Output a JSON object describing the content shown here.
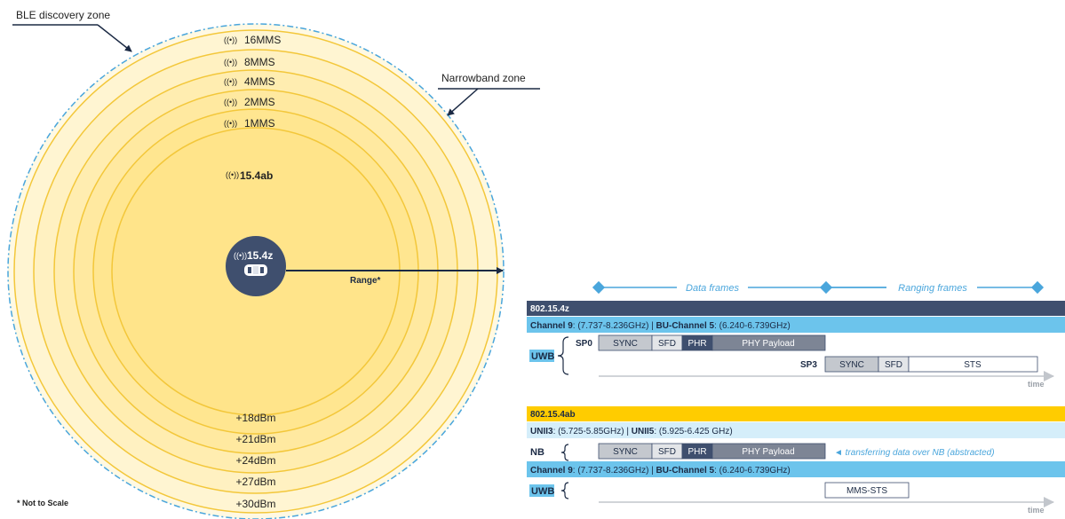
{
  "colors": {
    "navy": "#3f4f6e",
    "sky": "#6cc4ec",
    "sky_light": "#d5eefa",
    "gold": "#ffcc00",
    "ring": "#f3c73a",
    "fill_outer": "#fff7d9",
    "fill_inner": "#ffe58a",
    "grey": "#bfc3ca",
    "grey_dark": "#7d8595",
    "dash": "#4aa6dc"
  },
  "left": {
    "ble_label": "BLE discovery zone",
    "narrowband_label": "Narrowband zone",
    "mms_rings": [
      "16MMS",
      "8MMS",
      "4MMS",
      "2MMS",
      "1MMS"
    ],
    "ab_label": "15.4ab",
    "center_label": "15.4z",
    "range_label": "Range*",
    "power_levels": [
      "+18dBm",
      "+21dBm",
      "+24dBm",
      "+27dBm",
      "+30dBm"
    ],
    "footnote": "* Not to Scale"
  },
  "right": {
    "data_frames_label": "Data frames",
    "ranging_frames_label": "Ranging frames",
    "z": {
      "title": "802.15.4z",
      "channel_bold1": "Channel 9",
      "channel_text1": ": (7.737-8.236GHz) | ",
      "channel_bold2": "BU-Channel 5",
      "channel_text2": ": (6.240-6.739GHz)",
      "uwb_label": "UWB",
      "sp0_label": "SP0",
      "sp0_fields": [
        "SYNC",
        "SFD",
        "PHR",
        "PHY Payload"
      ],
      "sp3_label": "SP3",
      "sp3_fields": [
        "SYNC",
        "SFD",
        "STS"
      ],
      "time_label": "time"
    },
    "ab": {
      "title": "802.15.4ab",
      "unii_bold1": "UNII3",
      "unii_text1": ": (5.725-5.85GHz) | ",
      "unii_bold2": "UNII5",
      "unii_text2": ": (5.925-6.425 GHz)",
      "nb_label": "NB",
      "nb_fields": [
        "SYNC",
        "SFD",
        "PHR",
        "PHY Payload"
      ],
      "nb_note": "◄ transferring data over NB (abstracted)",
      "channel_bold1": "Channel 9",
      "channel_text1": ": (7.737-8.236GHz) | ",
      "channel_bold2": "BU-Channel 5",
      "channel_text2": ": (6.240-6.739GHz)",
      "uwb_label": "UWB",
      "mms_sts_label": "MMS-STS",
      "time_label": "time"
    }
  }
}
